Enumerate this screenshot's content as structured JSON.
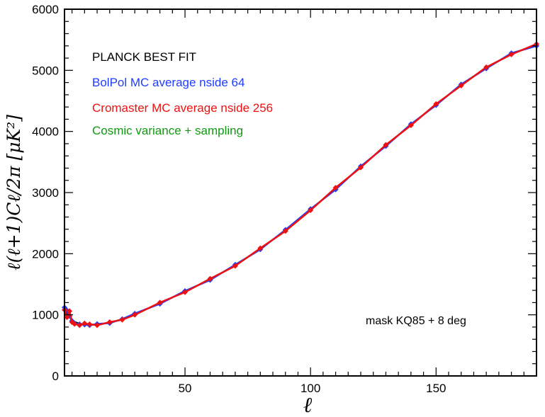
{
  "chart_data": {
    "type": "line",
    "xlabel": "ℓ",
    "ylabel": "ℓ(ℓ+1)Cℓ/2π [μK²]",
    "xlim": [
      2,
      190
    ],
    "ylim": [
      0,
      6000
    ],
    "xticks": [
      50,
      100,
      150
    ],
    "yticks": [
      0,
      1000,
      2000,
      3000,
      4000,
      5000,
      6000
    ],
    "legend_placement": "top-left",
    "legend": [
      {
        "label": "PLANCK BEST FIT",
        "color": "#000000"
      },
      {
        "label": "BolPol MC average nside 64",
        "color": "#1f3cff"
      },
      {
        "label": "Cromaster MC average nside 256",
        "color": "#ee1111"
      },
      {
        "label": "Cosmic variance + sampling",
        "color": "#119911"
      }
    ],
    "annotation": "mask KQ85 + 8 deg",
    "colors": {
      "black": "#000000",
      "blue": "#1f3cff",
      "red": "#ee1111",
      "green": "#119911"
    },
    "x": [
      2,
      3,
      4,
      5,
      6,
      8,
      10,
      12,
      15,
      20,
      25,
      30,
      40,
      50,
      60,
      70,
      80,
      90,
      100,
      110,
      120,
      130,
      140,
      150,
      160,
      170,
      180,
      190
    ],
    "series": [
      {
        "name": "PLANCK BEST FIT",
        "values": [
          1100,
          1020,
          960,
          920,
          890,
          860,
          845,
          838,
          838,
          870,
          930,
          1010,
          1190,
          1380,
          1580,
          1810,
          2080,
          2380,
          2720,
          3060,
          3420,
          3770,
          4110,
          4440,
          4760,
          5040,
          5270,
          5420
        ]
      },
      {
        "name": "BolPol MC average nside 64",
        "values": [
          1120,
          1070,
          980,
          900,
          860,
          845,
          840,
          830,
          850,
          865,
          930,
          1020,
          1180,
          1390,
          1570,
          1820,
          2070,
          2390,
          2730,
          3050,
          3430,
          3760,
          4120,
          4430,
          4770,
          5030,
          5280,
          5400
        ]
      },
      {
        "name": "Cromaster MC average nside 256",
        "values": [
          1080,
          960,
          1060,
          880,
          850,
          830,
          860,
          845,
          830,
          880,
          920,
          1000,
          1200,
          1370,
          1590,
          1800,
          2090,
          2370,
          2710,
          3080,
          3410,
          3780,
          4100,
          4450,
          4750,
          5050,
          5260,
          5430
        ]
      }
    ]
  }
}
